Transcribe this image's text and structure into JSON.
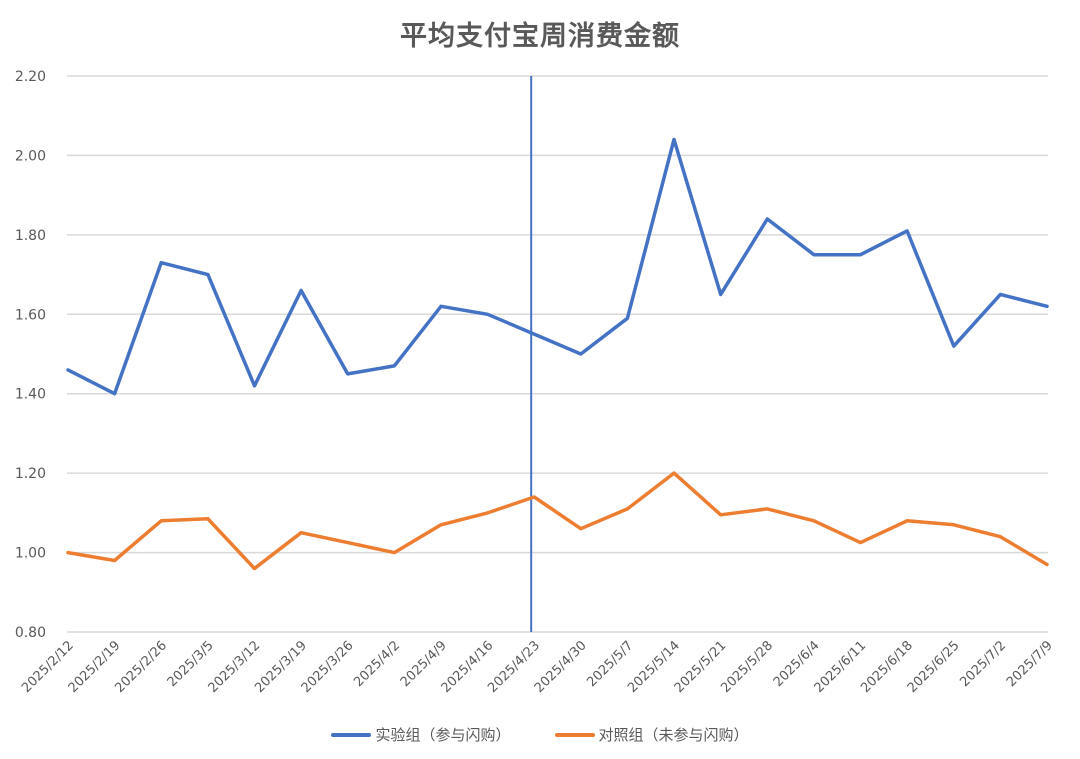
{
  "chart_data": {
    "type": "line",
    "title": "平均支付宝周消费金额",
    "xlabel": "",
    "ylabel": "",
    "ylim": [
      0.8,
      2.2
    ],
    "yticks": [
      "0.80",
      "1.00",
      "1.20",
      "1.40",
      "1.60",
      "1.80",
      "2.00",
      "2.20"
    ],
    "grid": true,
    "legend_position": "bottom",
    "categories": [
      "2025/2/12",
      "2025/2/19",
      "2025/2/26",
      "2025/3/5",
      "2025/3/12",
      "2025/3/19",
      "2025/3/26",
      "2025/4/2",
      "2025/4/9",
      "2025/4/16",
      "2025/4/23",
      "2025/4/30",
      "2025/5/7",
      "2025/5/14",
      "2025/5/21",
      "2025/5/28",
      "2025/6/4",
      "2025/6/11",
      "2025/6/18",
      "2025/6/25",
      "2025/7/2",
      "2025/7/9"
    ],
    "series": [
      {
        "name": "实验组（参与闪购）",
        "color": "#4472C4",
        "values": [
          1.46,
          1.4,
          1.73,
          1.7,
          1.42,
          1.66,
          1.45,
          1.47,
          1.62,
          1.6,
          1.55,
          1.5,
          1.59,
          2.04,
          1.65,
          1.84,
          1.75,
          1.75,
          1.81,
          1.52,
          1.65,
          1.62
        ]
      },
      {
        "name": "对照组（未参与闪购）",
        "color": "#ED7D31",
        "values": [
          1.0,
          0.98,
          1.08,
          1.085,
          0.96,
          1.05,
          1.025,
          1.0,
          1.07,
          1.1,
          1.14,
          1.06,
          1.11,
          1.2,
          1.095,
          1.11,
          1.08,
          1.025,
          1.08,
          1.07,
          1.04,
          0.97
        ]
      }
    ],
    "annotations": [
      {
        "type": "vertical-line",
        "x": "2025/4/23",
        "color": "#4472C4"
      }
    ]
  },
  "legend": {
    "items": [
      {
        "label": "实验组（参与闪购）",
        "color": "#4472C4"
      },
      {
        "label": "对照组（未参与闪购）",
        "color": "#ED7D31"
      }
    ]
  }
}
